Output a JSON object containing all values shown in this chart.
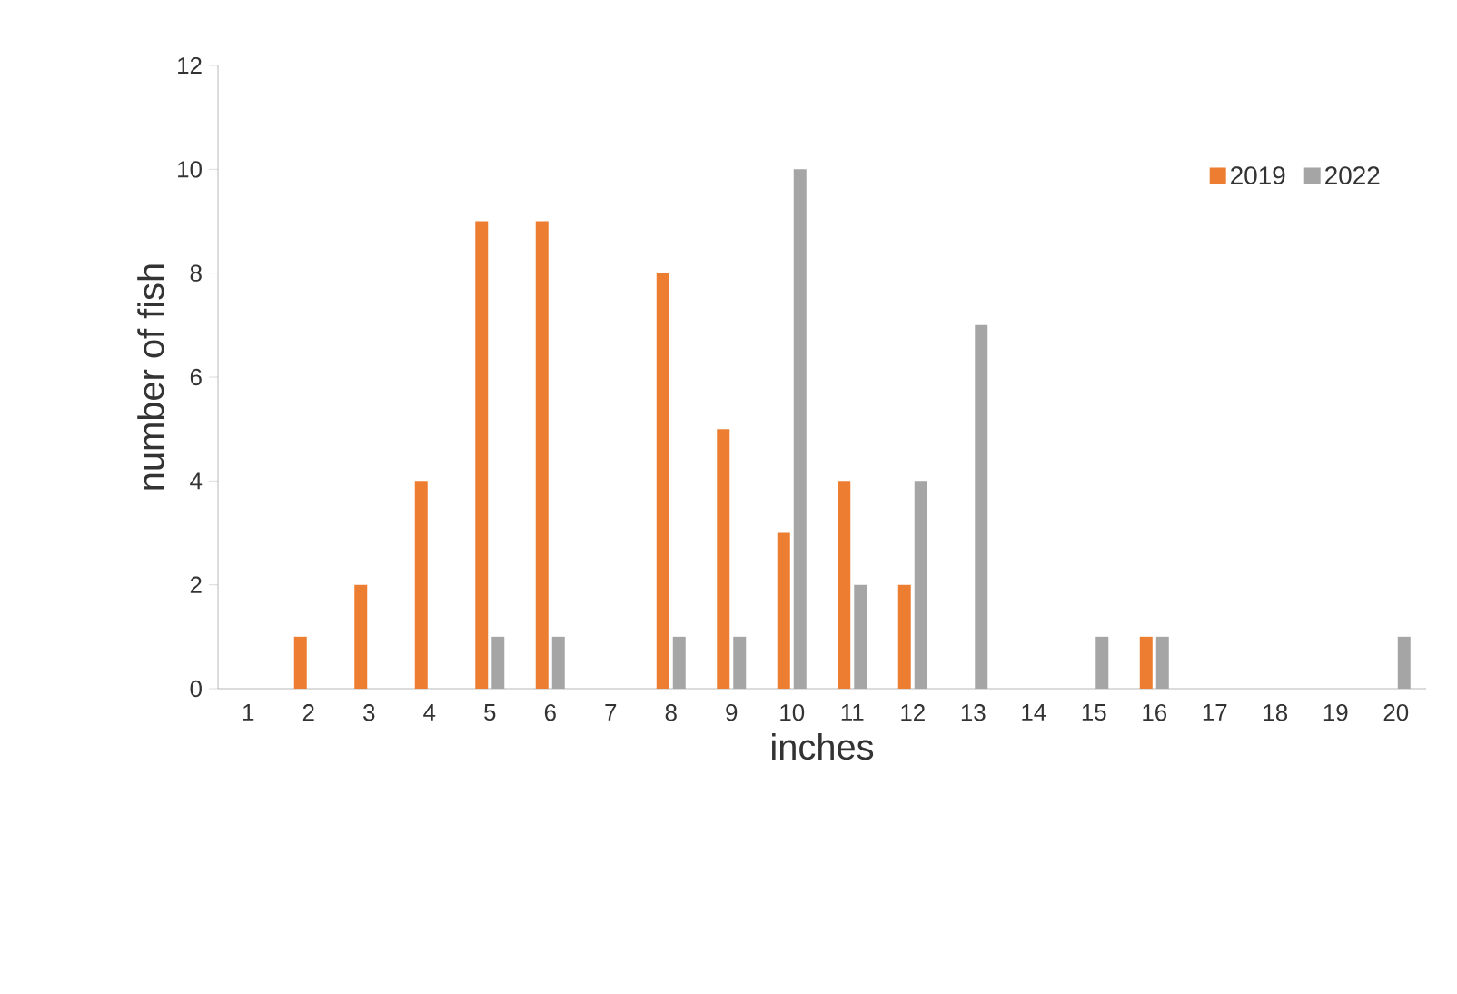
{
  "chart_data": {
    "type": "bar",
    "xlabel": "inches",
    "ylabel": "number of fish",
    "categories": [
      "1",
      "2",
      "3",
      "4",
      "5",
      "6",
      "7",
      "8",
      "9",
      "10",
      "11",
      "12",
      "13",
      "14",
      "15",
      "16",
      "17",
      "18",
      "19",
      "20"
    ],
    "series": [
      {
        "name": "2019",
        "color": "#ed7d31",
        "values": [
          0,
          1,
          2,
          4,
          9,
          9,
          0,
          8,
          5,
          3,
          4,
          2,
          0,
          0,
          0,
          1,
          0,
          0,
          0,
          0
        ]
      },
      {
        "name": "2022",
        "color": "#a5a5a5",
        "values": [
          0,
          0,
          0,
          0,
          1,
          1,
          0,
          1,
          1,
          10,
          2,
          4,
          7,
          0,
          1,
          1,
          0,
          0,
          0,
          1
        ]
      }
    ],
    "ylim": [
      0,
      12
    ],
    "yticks": [
      0,
      2,
      4,
      6,
      8,
      10,
      12
    ],
    "legend": "top right"
  }
}
